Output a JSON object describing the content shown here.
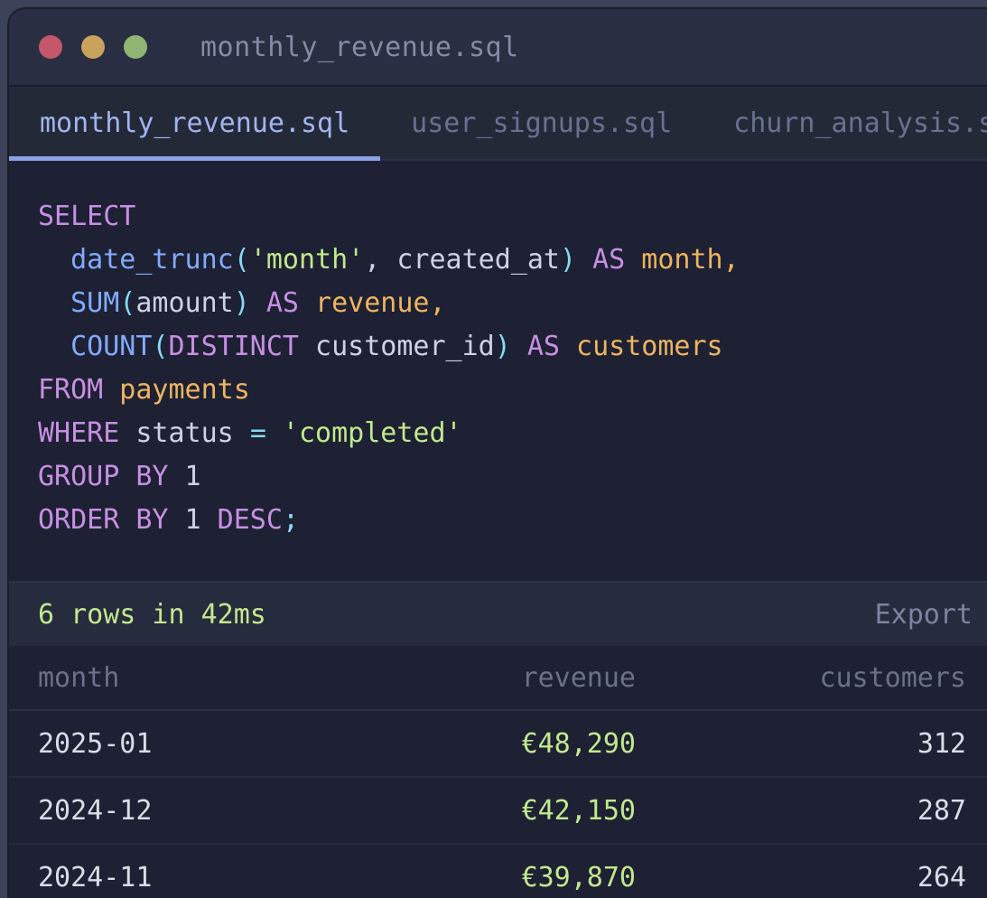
{
  "window": {
    "title": "monthly_revenue.sql",
    "traffic_lights": [
      "close",
      "minimize",
      "zoom"
    ]
  },
  "tabs": [
    {
      "label": "monthly_revenue.sql",
      "active": true
    },
    {
      "label": "user_signups.sql",
      "active": false
    },
    {
      "label": "churn_analysis.s",
      "active": false
    }
  ],
  "editor": {
    "language": "sql",
    "lines": [
      [
        [
          "kw",
          "SELECT"
        ]
      ],
      [
        [
          "fn",
          "  date_trunc"
        ],
        [
          "pu",
          "("
        ],
        [
          "str",
          "'month'"
        ],
        [
          "id",
          ", created_at"
        ],
        [
          "pu",
          ")"
        ],
        [
          "kw",
          " AS"
        ],
        [
          "al",
          " month,"
        ]
      ],
      [
        [
          "fn",
          "  SUM"
        ],
        [
          "pu",
          "("
        ],
        [
          "id",
          "amount"
        ],
        [
          "pu",
          ")"
        ],
        [
          "kw",
          " AS"
        ],
        [
          "al",
          " revenue,"
        ]
      ],
      [
        [
          "fn",
          "  COUNT"
        ],
        [
          "pu",
          "("
        ],
        [
          "kw",
          "DISTINCT"
        ],
        [
          "id",
          " customer_id"
        ],
        [
          "pu",
          ")"
        ],
        [
          "kw",
          " AS"
        ],
        [
          "al",
          " customers"
        ]
      ],
      [
        [
          "kw",
          "FROM"
        ],
        [
          "al",
          " payments"
        ]
      ],
      [
        [
          "kw",
          "WHERE"
        ],
        [
          "id",
          " status "
        ],
        [
          "pu",
          "="
        ],
        [
          "str",
          " 'completed'"
        ]
      ],
      [
        [
          "kw",
          "GROUP BY"
        ],
        [
          "id",
          " 1"
        ]
      ],
      [
        [
          "kw",
          "ORDER BY"
        ],
        [
          "id",
          " 1"
        ],
        [
          "kw",
          " DESC"
        ],
        [
          "pu",
          ";"
        ]
      ]
    ]
  },
  "status_bar": {
    "result_summary": "6 rows in 42ms",
    "export_label": "Export"
  },
  "results_table": {
    "columns": [
      {
        "label": "month",
        "align": "left"
      },
      {
        "label": "revenue",
        "align": "right"
      },
      {
        "label": "customers",
        "align": "right"
      }
    ],
    "rows": [
      [
        "2025-01",
        "€48,290",
        "312"
      ],
      [
        "2024-12",
        "€42,150",
        "287"
      ],
      [
        "2024-11",
        "€39,870",
        "264"
      ]
    ]
  },
  "colors": {
    "outer_bg": "#3c4257",
    "window_border": "#1b1e2d",
    "titlebar_bg": "#292e42",
    "tabbar_bg": "#242938",
    "editor_bg": "#1d2133",
    "statusbar_bg": "#272b3e",
    "accent": "#8aa2e6",
    "tab_active": "#a3b4f0",
    "tab_inactive": "#6a7190",
    "title_text": "#868ba6",
    "result_text": "#c3e88d",
    "export_text": "#7d84a0",
    "header_text": "#6a7189",
    "row_text": "#dadde8",
    "revenue_text": "#c3e88d",
    "separator": "#2c3147",
    "row_separator": "#262b40",
    "traffic_red": "#c4576a",
    "traffic_yellow": "#c9a25b",
    "traffic_green": "#8fb573",
    "syntax": {
      "kw": "#c88fe4",
      "fn": "#82aaff",
      "pu": "#86d9f5",
      "str": "#c3e88d",
      "id": "#ced3e2",
      "al": "#eeb460"
    }
  }
}
